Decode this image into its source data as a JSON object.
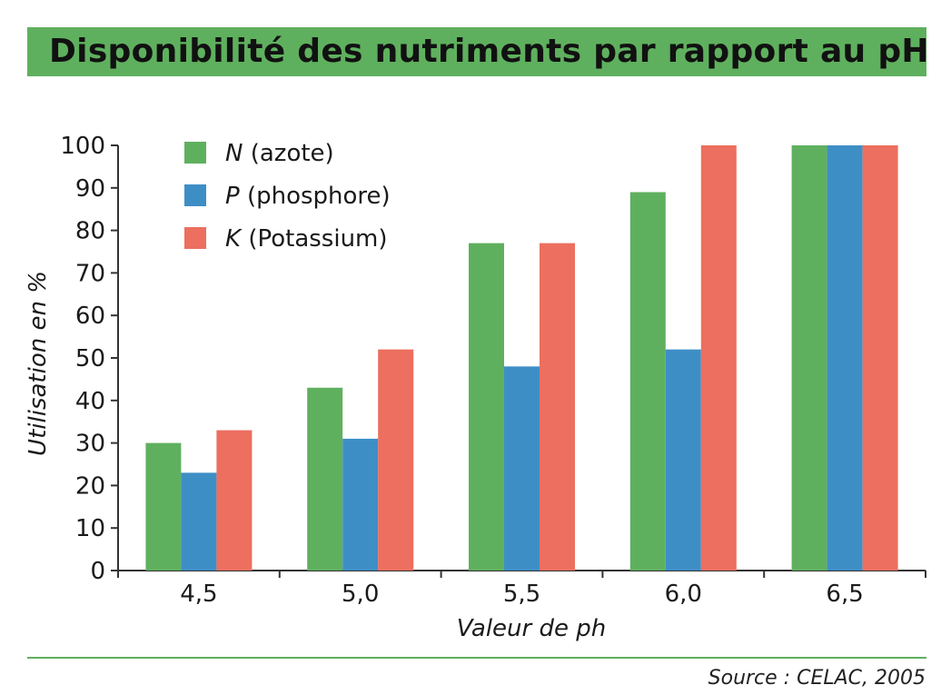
{
  "title": "Disponibilité des nutriments par rapport au pH",
  "source": "Source : CELAC, 2005",
  "colors": {
    "banner": "#5fb05e",
    "N": "#5fb05e",
    "P": "#3e8ec6",
    "K": "#ec6f5f"
  },
  "chart_data": {
    "type": "bar",
    "title": "Disponibilité des nutriments par rapport au pH",
    "xlabel": "Valeur de ph",
    "ylabel": "Utilisation en %",
    "ylim": [
      0,
      100
    ],
    "yticks": [
      0,
      10,
      20,
      30,
      40,
      50,
      60,
      70,
      80,
      90,
      100
    ],
    "categories": [
      "4,5",
      "5,0",
      "5,5",
      "6,0",
      "6,5"
    ],
    "legend_position": "top-left",
    "series": [
      {
        "key": "N",
        "symbol": "N",
        "name": "(azote)",
        "color": "#5fb05e",
        "values": [
          30,
          43,
          77,
          89,
          100
        ]
      },
      {
        "key": "P",
        "symbol": "P",
        "name": "(phosphore)",
        "color": "#3e8ec6",
        "values": [
          23,
          31,
          48,
          52,
          100
        ]
      },
      {
        "key": "K",
        "symbol": "K",
        "name": "(Potassium)",
        "color": "#ec6f5f",
        "values": [
          33,
          52,
          77,
          100,
          100
        ]
      }
    ]
  }
}
